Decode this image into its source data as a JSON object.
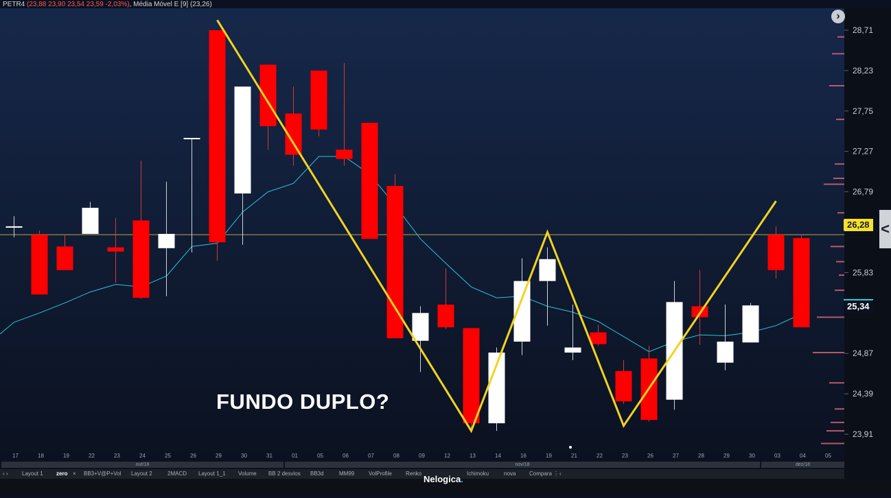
{
  "legend": {
    "symbol": "PETR4",
    "ohlc": "(23,88  23,90  23,54  23,59  -2,03%)",
    "indicator_name": "Média Móvel E [9]",
    "indicator_value": "(23,26)"
  },
  "annotation": "FUNDO DUPLO?",
  "price_badges": {
    "current": "26,28",
    "last": "25,34"
  },
  "months": {
    "oct": "out/18",
    "nov": "nov/18",
    "dec": "dez/18"
  },
  "tabs": [
    "Layout 1",
    "zero",
    "×",
    "BB3+V@P+Vol",
    "Layout 2",
    "2MACD",
    "Layout 1_1",
    "Volume",
    "BB 2 desvios",
    "BB3d",
    "MM99",
    "VolProfile",
    "Renko",
    "Ichimoku",
    "nova",
    "Compara ⋮",
    "‹"
  ],
  "tab_nav": "‹ ›",
  "brand": "Nelogica",
  "colors": {
    "background_top": "#16284a",
    "background_bottom": "#0b1120",
    "up_candle": "#ffffff",
    "down_candle": "#ff0000",
    "ema": "#2ec4d8",
    "pattern_line": "#f2d421",
    "current_price_line": "#b8a84a"
  },
  "chart_data": {
    "type": "candlestick",
    "ylim": [
      23.67,
      28.95
    ],
    "y_ticks": [
      "28,71",
      "28,23",
      "27,75",
      "27,27",
      "26,79",
      "25,83",
      "24,87",
      "24,39",
      "23,91"
    ],
    "categories": [
      "17",
      "18",
      "19",
      "22",
      "23",
      "24",
      "25",
      "26",
      "29",
      "30",
      "31",
      "01",
      "05",
      "06",
      "07",
      "08",
      "09",
      "12",
      "13",
      "14",
      "16",
      "19",
      "21",
      "22",
      "23",
      "26",
      "27",
      "28",
      "29",
      "30",
      "03",
      "04",
      "05"
    ],
    "candles": [
      {
        "d": "17",
        "o": 26.38,
        "h": 26.5,
        "l": 26.25,
        "c": 26.38
      },
      {
        "d": "18",
        "o": 26.28,
        "h": 26.33,
        "l": 25.57,
        "c": 25.57
      },
      {
        "d": "19",
        "o": 26.14,
        "h": 26.28,
        "l": 25.86,
        "c": 25.86
      },
      {
        "d": "22",
        "o": 26.29,
        "h": 26.67,
        "l": 26.29,
        "c": 26.6
      },
      {
        "d": "23",
        "o": 26.13,
        "h": 26.48,
        "l": 25.71,
        "c": 26.08
      },
      {
        "d": "24",
        "o": 26.45,
        "h": 27.16,
        "l": 25.52,
        "c": 25.53
      },
      {
        "d": "25",
        "o": 26.12,
        "h": 26.91,
        "l": 25.55,
        "c": 26.29
      },
      {
        "d": "26",
        "o": 27.43,
        "h": 27.43,
        "l": 26.07,
        "c": 27.43
      },
      {
        "d": "29",
        "o": 28.71,
        "h": 28.71,
        "l": 25.97,
        "c": 26.19
      },
      {
        "d": "30",
        "o": 26.77,
        "h": 28.04,
        "l": 26.16,
        "c": 28.04
      },
      {
        "d": "31",
        "o": 28.3,
        "h": 28.3,
        "l": 27.29,
        "c": 27.57
      },
      {
        "d": "01",
        "o": 27.72,
        "h": 28.04,
        "l": 27.1,
        "c": 27.23
      },
      {
        "d": "05",
        "o": 28.23,
        "h": 28.23,
        "l": 27.45,
        "c": 27.53
      },
      {
        "d": "06",
        "o": 27.29,
        "h": 28.32,
        "l": 27.1,
        "c": 27.18
      },
      {
        "d": "07",
        "o": 27.61,
        "h": 27.61,
        "l": 26.23,
        "c": 26.23
      },
      {
        "d": "08",
        "o": 26.86,
        "h": 27.0,
        "l": 25.05,
        "c": 25.05
      },
      {
        "d": "09",
        "o": 25.02,
        "h": 25.43,
        "l": 24.65,
        "c": 25.35
      },
      {
        "d": "12",
        "o": 25.45,
        "h": 25.88,
        "l": 25.16,
        "c": 25.18
      },
      {
        "d": "13",
        "o": 25.17,
        "h": 25.17,
        "l": 23.95,
        "c": 24.04
      },
      {
        "d": "14",
        "o": 24.04,
        "h": 24.94,
        "l": 23.95,
        "c": 24.88
      },
      {
        "d": "16",
        "o": 25.01,
        "h": 26.0,
        "l": 24.85,
        "c": 25.73
      },
      {
        "d": "19",
        "o": 25.73,
        "h": 26.13,
        "l": 25.2,
        "c": 25.99
      },
      {
        "d": "21",
        "o": 24.88,
        "h": 25.45,
        "l": 24.79,
        "c": 24.94
      },
      {
        "d": "22",
        "o": 25.12,
        "h": 25.21,
        "l": 24.96,
        "c": 24.98
      },
      {
        "d": "23",
        "o": 24.66,
        "h": 24.79,
        "l": 24.27,
        "c": 24.3
      },
      {
        "d": "26",
        "o": 24.81,
        "h": 24.96,
        "l": 24.06,
        "c": 24.08
      },
      {
        "d": "27",
        "o": 24.32,
        "h": 25.73,
        "l": 24.2,
        "c": 25.48
      },
      {
        "d": "28",
        "o": 25.43,
        "h": 25.86,
        "l": 24.97,
        "c": 25.3
      },
      {
        "d": "29",
        "o": 24.76,
        "h": 25.45,
        "l": 24.67,
        "c": 25.01
      },
      {
        "d": "30",
        "o": 25.0,
        "h": 25.47,
        "l": 25.0,
        "c": 25.44
      },
      {
        "d": "03",
        "o": 26.28,
        "h": 26.38,
        "l": 25.76,
        "c": 25.86
      },
      {
        "d": "04",
        "o": 26.24,
        "h": 26.28,
        "l": 25.18,
        "c": 25.18
      },
      {
        "d": "05",
        "o": null,
        "h": null,
        "l": null,
        "c": null
      }
    ],
    "ema": [
      25.24,
      25.35,
      25.47,
      25.6,
      25.69,
      25.66,
      25.79,
      26.14,
      26.18,
      26.55,
      26.79,
      26.89,
      27.21,
      27.21,
      27.0,
      26.63,
      26.23,
      25.94,
      25.66,
      25.53,
      25.55,
      25.43,
      25.36,
      25.25,
      25.07,
      24.89,
      25.01,
      25.09,
      25.08,
      25.12,
      25.2,
      25.34,
      null
    ],
    "pattern_points": [
      {
        "d": "29",
        "v": 28.83
      },
      {
        "d": "13",
        "v": 23.95
      },
      {
        "d": "19",
        "v": 26.31
      },
      {
        "d": "23",
        "v": 24.01
      },
      {
        "d": "03",
        "v": 26.68
      }
    ],
    "current_price": 26.28
  }
}
